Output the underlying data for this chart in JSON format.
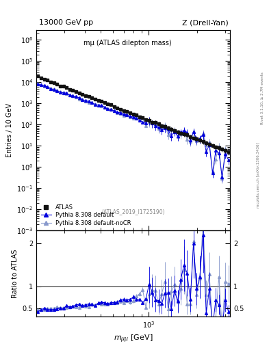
{
  "title_left": "13000 GeV pp",
  "title_right": "Z (Drell-Yan)",
  "annotation": "mµ (ATLAS dilepton mass)",
  "atlas_label": "(ATLAS_2019_I1725190)",
  "ylabel_main": "Entries / 10 GeV",
  "ylabel_ratio": "Ratio to ATLAS",
  "xlabel": "m_{\\mu\\mu} [GeV]",
  "right_label_top": "Rivet 3.1.10, ≥ 2.7M events",
  "right_label_bot": "mcplots.cern.ch [arXiv:1306.3436]",
  "xlim": [
    200,
    3200
  ],
  "ylim_main": [
    0.001,
    3000000.0
  ],
  "ylim_ratio": [
    0.3,
    2.3
  ],
  "legend_labels": [
    "ATLAS",
    "Pythia 8.308 default",
    "Pythia 8.308 default-noCR"
  ],
  "colors": {
    "ATLAS": "#111111",
    "default": "#0000dd",
    "noCR": "#8899cc"
  }
}
